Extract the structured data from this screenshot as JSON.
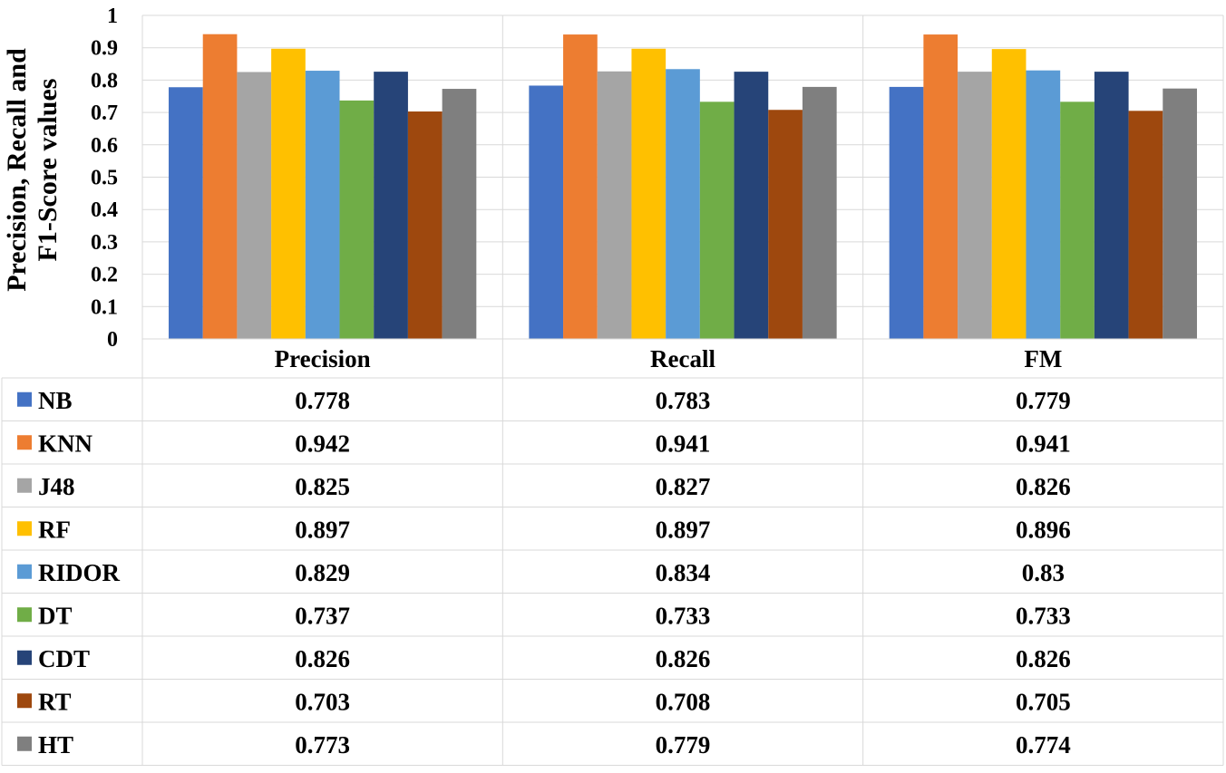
{
  "chart_data": {
    "type": "bar",
    "title": "",
    "xlabel": "",
    "ylabel": "Precision, Recall and F1-Score values",
    "ylim": [
      0,
      1
    ],
    "yticks": [
      "0",
      "0.1",
      "0.2",
      "0.3",
      "0.4",
      "0.5",
      "0.6",
      "0.7",
      "0.8",
      "0.9",
      "1"
    ],
    "grid": true,
    "legend": "data-table",
    "categories": [
      "Precision",
      "Recall",
      "FM"
    ],
    "series": [
      {
        "name": "NB",
        "color": "#4472C4",
        "values": [
          0.778,
          0.783,
          0.779
        ],
        "labels": [
          "0.778",
          "0.783",
          "0.779"
        ]
      },
      {
        "name": "KNN",
        "color": "#ED7D31",
        "values": [
          0.942,
          0.941,
          0.941
        ],
        "labels": [
          "0.942",
          "0.941",
          "0.941"
        ]
      },
      {
        "name": "J48",
        "color": "#A5A5A5",
        "values": [
          0.825,
          0.827,
          0.826
        ],
        "labels": [
          "0.825",
          "0.827",
          "0.826"
        ]
      },
      {
        "name": "RF",
        "color": "#FFC000",
        "values": [
          0.897,
          0.897,
          0.896
        ],
        "labels": [
          "0.897",
          "0.897",
          "0.896"
        ]
      },
      {
        "name": "RIDOR",
        "color": "#5B9BD5",
        "values": [
          0.829,
          0.834,
          0.83
        ],
        "labels": [
          "0.829",
          "0.834",
          "0.83"
        ]
      },
      {
        "name": "DT",
        "color": "#70AD47",
        "values": [
          0.737,
          0.733,
          0.733
        ],
        "labels": [
          "0.737",
          "0.733",
          "0.733"
        ]
      },
      {
        "name": "CDT",
        "color": "#264478",
        "values": [
          0.826,
          0.826,
          0.826
        ],
        "labels": [
          "0.826",
          "0.826",
          "0.826"
        ]
      },
      {
        "name": "RT",
        "color": "#9E480E",
        "values": [
          0.703,
          0.708,
          0.705
        ],
        "labels": [
          "0.703",
          "0.708",
          "0.705"
        ]
      },
      {
        "name": "HT",
        "color": "#7F7F7F",
        "values": [
          0.773,
          0.779,
          0.774
        ],
        "labels": [
          "0.773",
          "0.779",
          "0.774"
        ]
      }
    ]
  }
}
